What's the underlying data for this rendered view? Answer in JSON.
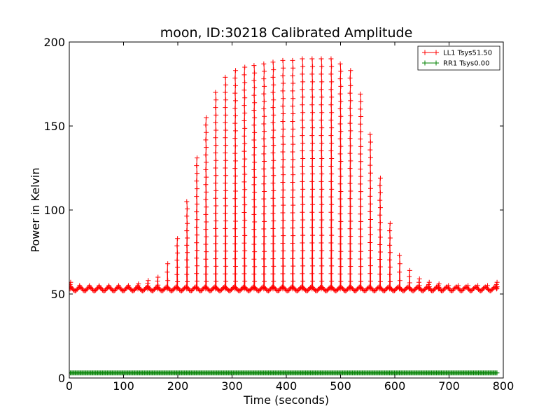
{
  "chart_data": {
    "type": "line",
    "title": "moon, ID:30218 Calibrated Amplitude",
    "xlabel": "Time (seconds)",
    "ylabel": "Power in Kelvin",
    "xlim": [
      0,
      800
    ],
    "ylim": [
      0,
      200
    ],
    "xticks": [
      "0",
      "100",
      "200",
      "300",
      "400",
      "500",
      "600",
      "700",
      "800"
    ],
    "yticks": [
      "0",
      "50",
      "100",
      "150",
      "200"
    ],
    "grid": false,
    "legend_position": "top-right",
    "series": [
      {
        "name": "LL1 Tsys51.50",
        "color": "#ff0000",
        "marker": "+",
        "baseline": 53,
        "x_range": [
          0,
          790
        ],
        "peaks": [
          {
            "x": 2,
            "y": 57
          },
          {
            "x": 19,
            "y": 55
          },
          {
            "x": 37,
            "y": 55
          },
          {
            "x": 55,
            "y": 55
          },
          {
            "x": 73,
            "y": 55
          },
          {
            "x": 91,
            "y": 55
          },
          {
            "x": 109,
            "y": 55
          },
          {
            "x": 127,
            "y": 56
          },
          {
            "x": 145,
            "y": 58
          },
          {
            "x": 163,
            "y": 60
          },
          {
            "x": 181,
            "y": 68
          },
          {
            "x": 199,
            "y": 83
          },
          {
            "x": 217,
            "y": 105
          },
          {
            "x": 235,
            "y": 131
          },
          {
            "x": 252,
            "y": 155
          },
          {
            "x": 270,
            "y": 170
          },
          {
            "x": 288,
            "y": 179
          },
          {
            "x": 306,
            "y": 183
          },
          {
            "x": 323,
            "y": 185
          },
          {
            "x": 341,
            "y": 186
          },
          {
            "x": 359,
            "y": 187
          },
          {
            "x": 376,
            "y": 188
          },
          {
            "x": 394,
            "y": 189
          },
          {
            "x": 412,
            "y": 189
          },
          {
            "x": 430,
            "y": 190
          },
          {
            "x": 448,
            "y": 190
          },
          {
            "x": 465,
            "y": 190
          },
          {
            "x": 483,
            "y": 190
          },
          {
            "x": 500,
            "y": 187
          },
          {
            "x": 518,
            "y": 183
          },
          {
            "x": 537,
            "y": 169
          },
          {
            "x": 555,
            "y": 145
          },
          {
            "x": 573,
            "y": 119
          },
          {
            "x": 591,
            "y": 92
          },
          {
            "x": 609,
            "y": 73
          },
          {
            "x": 627,
            "y": 64
          },
          {
            "x": 645,
            "y": 59
          },
          {
            "x": 663,
            "y": 57
          },
          {
            "x": 681,
            "y": 56
          },
          {
            "x": 699,
            "y": 55
          },
          {
            "x": 717,
            "y": 55
          },
          {
            "x": 735,
            "y": 55
          },
          {
            "x": 753,
            "y": 55
          },
          {
            "x": 771,
            "y": 55
          },
          {
            "x": 788,
            "y": 57
          }
        ]
      },
      {
        "name": "RR1 Tsys0.00",
        "color": "#008000",
        "marker": "+",
        "baseline": 3,
        "x_range": [
          0,
          790
        ]
      }
    ]
  }
}
